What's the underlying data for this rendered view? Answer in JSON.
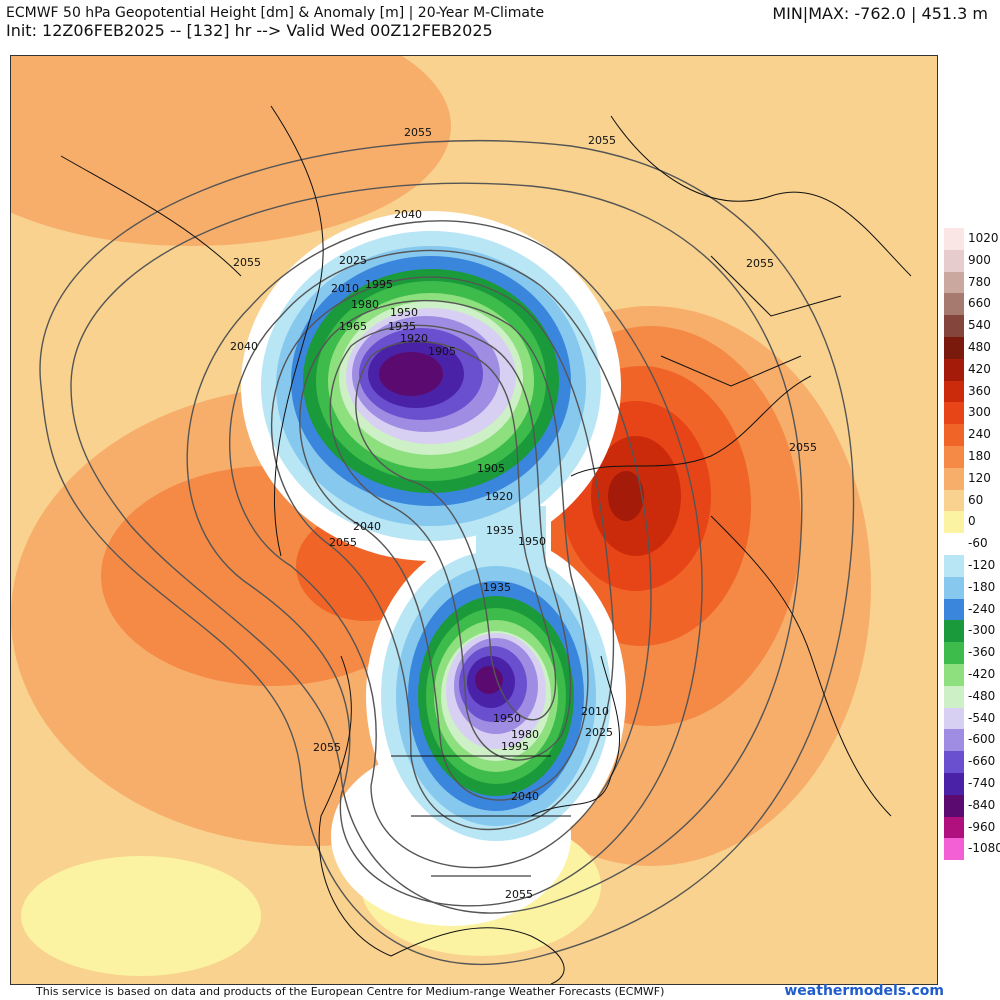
{
  "header": {
    "title_line1": "ECMWF 50 hPa Geopotential Height [dm] & Anomaly [m] | 20-Year M-Climate",
    "title_line2": "Init: 12Z06FEB2025 -- [132] hr --> Valid Wed 00Z12FEB2025",
    "minmax": "MIN|MAX: -762.0 | 451.3 m"
  },
  "legend": {
    "entries": [
      {
        "label": "1020",
        "color": "#fbe6e6"
      },
      {
        "label": "900",
        "color": "#e6cccc"
      },
      {
        "label": "780",
        "color": "#caa79f"
      },
      {
        "label": "660",
        "color": "#a77a6f"
      },
      {
        "label": "540",
        "color": "#84463c"
      },
      {
        "label": "480",
        "color": "#7a1a0c"
      },
      {
        "label": "420",
        "color": "#a51b0a"
      },
      {
        "label": "360",
        "color": "#cc2b0b"
      },
      {
        "label": "300",
        "color": "#e74417"
      },
      {
        "label": "240",
        "color": "#f06428"
      },
      {
        "label": "180",
        "color": "#f48a45"
      },
      {
        "label": "120",
        "color": "#f7ae6b"
      },
      {
        "label": "60",
        "color": "#f8d28e"
      },
      {
        "label": "0",
        "color": "#fbf3a2"
      },
      {
        "label": "-60",
        "color": "#ffffff"
      },
      {
        "label": "-120",
        "color": "#b8e6f5"
      },
      {
        "label": "-180",
        "color": "#86c8ee"
      },
      {
        "label": "-240",
        "color": "#3a86dc"
      },
      {
        "label": "-300",
        "color": "#1a9a3a"
      },
      {
        "label": "-360",
        "color": "#3dbb4b"
      },
      {
        "label": "-420",
        "color": "#8ee07f"
      },
      {
        "label": "-480",
        "color": "#cdf0c6"
      },
      {
        "label": "-540",
        "color": "#d8d0f2"
      },
      {
        "label": "-600",
        "color": "#9f8de3"
      },
      {
        "label": "-660",
        "color": "#6a4fcf"
      },
      {
        "label": "-740",
        "color": "#4a22a8"
      },
      {
        "label": "-840",
        "color": "#5b0b6f"
      },
      {
        "label": "-960",
        "color": "#b0107e"
      },
      {
        "label": "-1080",
        "color": "#f35fd5"
      }
    ]
  },
  "contour_labels": [
    "2055",
    "2055",
    "2040",
    "2025",
    "2010",
    "1995",
    "1980",
    "1965",
    "1950",
    "1935",
    "1920",
    "1905",
    "2055",
    "2040",
    "1905",
    "1920",
    "1935",
    "1950",
    "2040",
    "2055",
    "1935",
    "1950",
    "1995",
    "1980",
    "2010",
    "2025",
    "2040",
    "2055",
    "2055",
    "2055",
    "2055"
  ],
  "footer": {
    "credit": "This service is based on data and products of the European Centre for Medium-range Weather Forecasts (ECMWF)",
    "brand": "weathermodels.com"
  }
}
